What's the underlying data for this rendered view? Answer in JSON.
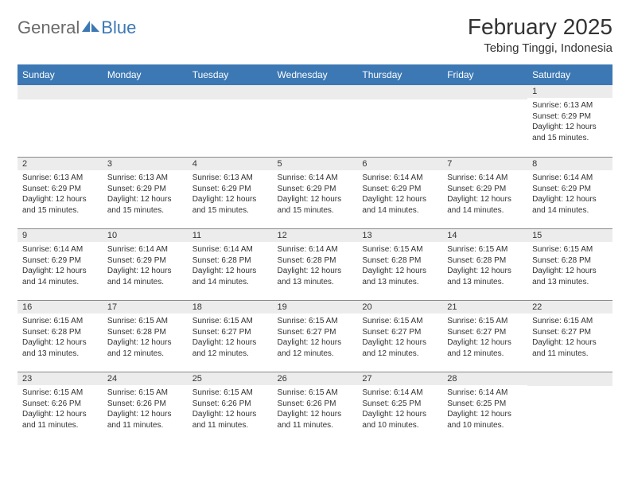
{
  "brand": {
    "text_general": "General",
    "text_blue": "Blue",
    "logo_color": "#3c78b4"
  },
  "header": {
    "month_title": "February 2025",
    "location": "Tebing Tinggi, Indonesia"
  },
  "colors": {
    "header_bg": "#3c78b4",
    "header_text": "#ffffff",
    "daynum_bg": "#ececec",
    "daynum_border": "#8a8a8a",
    "body_text": "#333333",
    "background": "#ffffff"
  },
  "weekdays": [
    "Sunday",
    "Monday",
    "Tuesday",
    "Wednesday",
    "Thursday",
    "Friday",
    "Saturday"
  ],
  "weeks": [
    [
      null,
      null,
      null,
      null,
      null,
      null,
      {
        "num": "1",
        "sunrise": "Sunrise: 6:13 AM",
        "sunset": "Sunset: 6:29 PM",
        "daylight": "Daylight: 12 hours and 15 minutes."
      }
    ],
    [
      {
        "num": "2",
        "sunrise": "Sunrise: 6:13 AM",
        "sunset": "Sunset: 6:29 PM",
        "daylight": "Daylight: 12 hours and 15 minutes."
      },
      {
        "num": "3",
        "sunrise": "Sunrise: 6:13 AM",
        "sunset": "Sunset: 6:29 PM",
        "daylight": "Daylight: 12 hours and 15 minutes."
      },
      {
        "num": "4",
        "sunrise": "Sunrise: 6:13 AM",
        "sunset": "Sunset: 6:29 PM",
        "daylight": "Daylight: 12 hours and 15 minutes."
      },
      {
        "num": "5",
        "sunrise": "Sunrise: 6:14 AM",
        "sunset": "Sunset: 6:29 PM",
        "daylight": "Daylight: 12 hours and 15 minutes."
      },
      {
        "num": "6",
        "sunrise": "Sunrise: 6:14 AM",
        "sunset": "Sunset: 6:29 PM",
        "daylight": "Daylight: 12 hours and 14 minutes."
      },
      {
        "num": "7",
        "sunrise": "Sunrise: 6:14 AM",
        "sunset": "Sunset: 6:29 PM",
        "daylight": "Daylight: 12 hours and 14 minutes."
      },
      {
        "num": "8",
        "sunrise": "Sunrise: 6:14 AM",
        "sunset": "Sunset: 6:29 PM",
        "daylight": "Daylight: 12 hours and 14 minutes."
      }
    ],
    [
      {
        "num": "9",
        "sunrise": "Sunrise: 6:14 AM",
        "sunset": "Sunset: 6:29 PM",
        "daylight": "Daylight: 12 hours and 14 minutes."
      },
      {
        "num": "10",
        "sunrise": "Sunrise: 6:14 AM",
        "sunset": "Sunset: 6:29 PM",
        "daylight": "Daylight: 12 hours and 14 minutes."
      },
      {
        "num": "11",
        "sunrise": "Sunrise: 6:14 AM",
        "sunset": "Sunset: 6:28 PM",
        "daylight": "Daylight: 12 hours and 14 minutes."
      },
      {
        "num": "12",
        "sunrise": "Sunrise: 6:14 AM",
        "sunset": "Sunset: 6:28 PM",
        "daylight": "Daylight: 12 hours and 13 minutes."
      },
      {
        "num": "13",
        "sunrise": "Sunrise: 6:15 AM",
        "sunset": "Sunset: 6:28 PM",
        "daylight": "Daylight: 12 hours and 13 minutes."
      },
      {
        "num": "14",
        "sunrise": "Sunrise: 6:15 AM",
        "sunset": "Sunset: 6:28 PM",
        "daylight": "Daylight: 12 hours and 13 minutes."
      },
      {
        "num": "15",
        "sunrise": "Sunrise: 6:15 AM",
        "sunset": "Sunset: 6:28 PM",
        "daylight": "Daylight: 12 hours and 13 minutes."
      }
    ],
    [
      {
        "num": "16",
        "sunrise": "Sunrise: 6:15 AM",
        "sunset": "Sunset: 6:28 PM",
        "daylight": "Daylight: 12 hours and 13 minutes."
      },
      {
        "num": "17",
        "sunrise": "Sunrise: 6:15 AM",
        "sunset": "Sunset: 6:28 PM",
        "daylight": "Daylight: 12 hours and 12 minutes."
      },
      {
        "num": "18",
        "sunrise": "Sunrise: 6:15 AM",
        "sunset": "Sunset: 6:27 PM",
        "daylight": "Daylight: 12 hours and 12 minutes."
      },
      {
        "num": "19",
        "sunrise": "Sunrise: 6:15 AM",
        "sunset": "Sunset: 6:27 PM",
        "daylight": "Daylight: 12 hours and 12 minutes."
      },
      {
        "num": "20",
        "sunrise": "Sunrise: 6:15 AM",
        "sunset": "Sunset: 6:27 PM",
        "daylight": "Daylight: 12 hours and 12 minutes."
      },
      {
        "num": "21",
        "sunrise": "Sunrise: 6:15 AM",
        "sunset": "Sunset: 6:27 PM",
        "daylight": "Daylight: 12 hours and 12 minutes."
      },
      {
        "num": "22",
        "sunrise": "Sunrise: 6:15 AM",
        "sunset": "Sunset: 6:27 PM",
        "daylight": "Daylight: 12 hours and 11 minutes."
      }
    ],
    [
      {
        "num": "23",
        "sunrise": "Sunrise: 6:15 AM",
        "sunset": "Sunset: 6:26 PM",
        "daylight": "Daylight: 12 hours and 11 minutes."
      },
      {
        "num": "24",
        "sunrise": "Sunrise: 6:15 AM",
        "sunset": "Sunset: 6:26 PM",
        "daylight": "Daylight: 12 hours and 11 minutes."
      },
      {
        "num": "25",
        "sunrise": "Sunrise: 6:15 AM",
        "sunset": "Sunset: 6:26 PM",
        "daylight": "Daylight: 12 hours and 11 minutes."
      },
      {
        "num": "26",
        "sunrise": "Sunrise: 6:15 AM",
        "sunset": "Sunset: 6:26 PM",
        "daylight": "Daylight: 12 hours and 11 minutes."
      },
      {
        "num": "27",
        "sunrise": "Sunrise: 6:14 AM",
        "sunset": "Sunset: 6:25 PM",
        "daylight": "Daylight: 12 hours and 10 minutes."
      },
      {
        "num": "28",
        "sunrise": "Sunrise: 6:14 AM",
        "sunset": "Sunset: 6:25 PM",
        "daylight": "Daylight: 12 hours and 10 minutes."
      },
      null
    ]
  ]
}
